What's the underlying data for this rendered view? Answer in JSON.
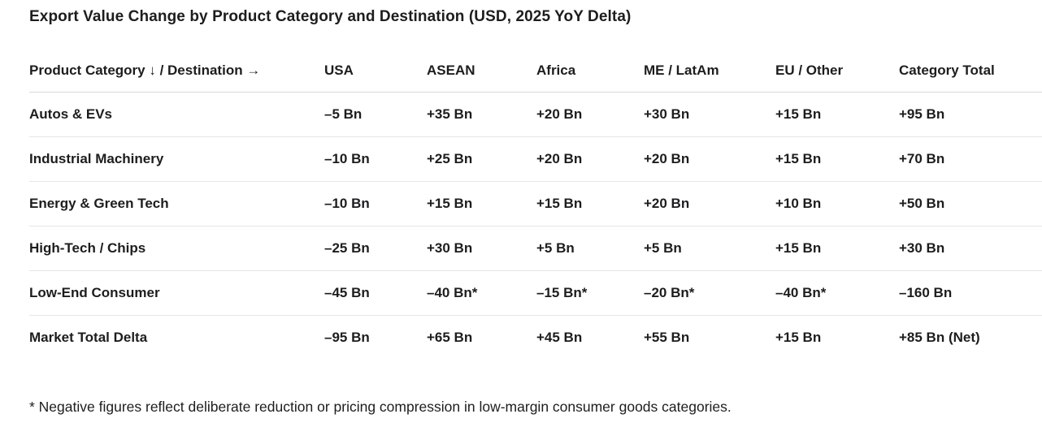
{
  "title": "Export Value Change by Product Category and Destination (USD, 2025 YoY Delta)",
  "table": {
    "headers": [
      "Product Category ↓ / Destination →",
      "USA",
      "ASEAN",
      "Africa",
      "ME / LatAm",
      "EU / Other",
      "Category Total"
    ],
    "rows": [
      [
        "Autos & EVs",
        "–5 Bn",
        "+35 Bn",
        "+20 Bn",
        "+30 Bn",
        "+15 Bn",
        "+95 Bn"
      ],
      [
        "Industrial Machinery",
        "–10 Bn",
        "+25 Bn",
        "+20 Bn",
        "+20 Bn",
        "+15 Bn",
        "+70 Bn"
      ],
      [
        "Energy & Green Tech",
        "–10 Bn",
        "+15 Bn",
        "+15 Bn",
        "+20 Bn",
        "+10 Bn",
        "+50 Bn"
      ],
      [
        "High-Tech / Chips",
        "–25 Bn",
        "+30 Bn",
        "+5 Bn",
        "+5 Bn",
        "+15 Bn",
        "+30 Bn"
      ],
      [
        "Low-End Consumer",
        "–45 Bn",
        "–40 Bn*",
        "–15 Bn*",
        "–20 Bn*",
        "–40 Bn*",
        "–160 Bn"
      ],
      [
        "Market Total Delta",
        "–95 Bn",
        "+65 Bn",
        "+45 Bn",
        "+55 Bn",
        "+15 Bn",
        "+85 Bn (Net)"
      ]
    ]
  },
  "footnote": "* Negative figures reflect deliberate reduction or pricing compression in low-margin consumer goods categories."
}
